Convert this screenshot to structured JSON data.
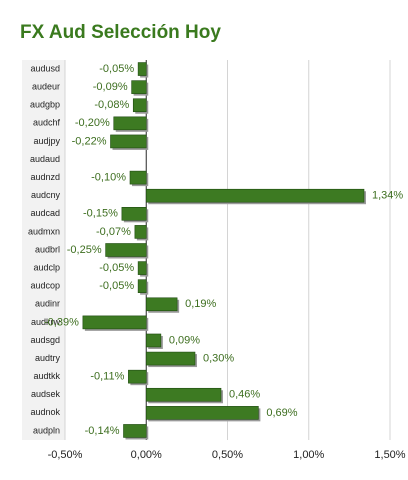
{
  "chart_data": {
    "type": "hbar",
    "title": "FX Aud Selección Hoy",
    "categories": [
      "audusd",
      "audeur",
      "audgbp",
      "audchf",
      "audjpy",
      "audaud",
      "audnzd",
      "audcny",
      "audcad",
      "audmxn",
      "audbrl",
      "audclp",
      "audcop",
      "audinr",
      "audkrw",
      "audsgd",
      "audtry",
      "audtkk",
      "audsek",
      "audnok",
      "audpln"
    ],
    "values": [
      -0.05,
      -0.09,
      -0.08,
      -0.2,
      -0.22,
      null,
      -0.1,
      1.34,
      -0.15,
      -0.07,
      -0.25,
      -0.05,
      -0.05,
      0.19,
      -0.39,
      0.09,
      0.3,
      -0.11,
      0.46,
      0.69,
      -0.14
    ],
    "value_labels": [
      "-0,05%",
      "-0,09%",
      "-0,08%",
      "-0,20%",
      "-0,22%",
      null,
      "-0,10%",
      "1,34%",
      "-0,15%",
      "-0,07%",
      "-0,25%",
      "-0,05%",
      "-0,05%",
      "0,19%",
      "-0,39%",
      "0,09%",
      "0,30%",
      "-0,11%",
      "0,46%",
      "0,69%",
      "-0,14%"
    ],
    "color": "#3d7a22",
    "xlim": [
      -0.5,
      1.5
    ],
    "xticks": [
      {
        "value": -0.5,
        "label": "-0,50%"
      },
      {
        "value": 0,
        "label": "0,00%"
      },
      {
        "value": 0.5,
        "label": "0,50%"
      },
      {
        "value": 1,
        "label": "1,00%"
      },
      {
        "value": 1.5,
        "label": "1,50%"
      }
    ],
    "grid": true
  }
}
